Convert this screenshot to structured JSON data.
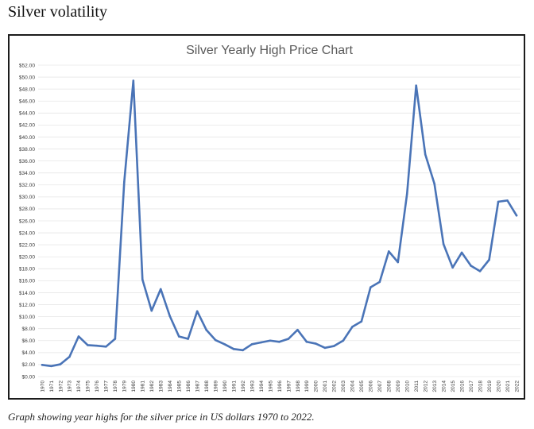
{
  "heading": "Silver volatility",
  "caption": "Graph showing year highs for the silver price in US dollars 1970 to 2022.",
  "colors": {
    "line": "#4a74b7",
    "grid": "#e6e6e6",
    "frame": "#1c1c1c"
  },
  "chart_data": {
    "type": "line",
    "title": "Silver Yearly High Price Chart",
    "xlabel": "",
    "ylabel": "",
    "ylim": [
      0,
      52
    ],
    "y_tick_step": 2,
    "y_tick_prefix": "$",
    "grid": true,
    "legend": "none",
    "x": [
      "1970",
      "1971",
      "1972",
      "1973",
      "1974",
      "1975",
      "1976",
      "1977",
      "1978",
      "1979",
      "1980",
      "1981",
      "1982",
      "1983",
      "1984",
      "1985",
      "1986",
      "1987",
      "1988",
      "1989",
      "1990",
      "1991",
      "1992",
      "1993",
      "1994",
      "1995",
      "1996",
      "1997",
      "1998",
      "1999",
      "2000",
      "2001",
      "2002",
      "2003",
      "2004",
      "2005",
      "2006",
      "2007",
      "2008",
      "2009",
      "2010",
      "2011",
      "2012",
      "2013",
      "2014",
      "2015",
      "2016",
      "2017",
      "2018",
      "2019",
      "2020",
      "2021",
      "2022"
    ],
    "series": [
      {
        "values": [
          1.95,
          1.75,
          2.05,
          3.3,
          6.7,
          5.25,
          5.15,
          5.0,
          6.3,
          32.5,
          49.4,
          16.2,
          11.0,
          14.6,
          10.1,
          6.7,
          6.3,
          10.9,
          7.8,
          6.1,
          5.4,
          4.6,
          4.4,
          5.4,
          5.7,
          6.0,
          5.8,
          6.3,
          7.8,
          5.8,
          5.5,
          4.8,
          5.1,
          6.0,
          8.3,
          9.2,
          14.9,
          15.8,
          20.9,
          19.1,
          30.5,
          48.6,
          37.1,
          32.2,
          22.1,
          18.2,
          20.7,
          18.5,
          17.6,
          19.5,
          29.2,
          29.4,
          26.9
        ]
      }
    ]
  }
}
